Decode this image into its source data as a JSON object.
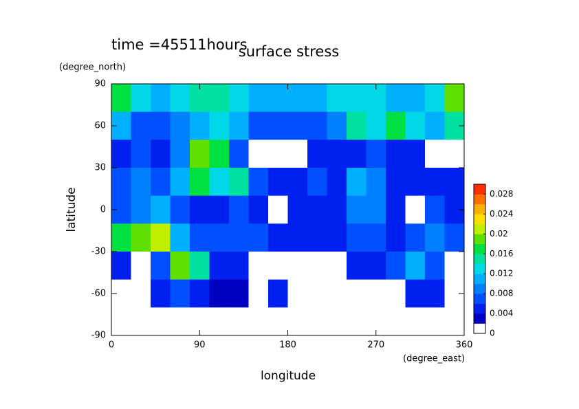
{
  "chart_data": {
    "type": "contour",
    "title": "surface stress",
    "subtitle": "time =45511hours",
    "xlabel": "longitude",
    "ylabel": "latitude",
    "xunit": "(degree_east)",
    "yunit": "(degree_north)",
    "xlim": [
      0,
      360
    ],
    "ylim": [
      -90,
      90
    ],
    "xticks": [
      0,
      90,
      180,
      270,
      360
    ],
    "yticks": [
      90,
      60,
      30,
      0,
      -30,
      -60,
      -90
    ],
    "xbins": [
      0,
      20,
      40,
      60,
      80,
      100,
      120,
      140,
      160,
      180,
      200,
      220,
      240,
      260,
      280,
      300,
      320,
      340,
      360
    ],
    "ybins": [
      90,
      70,
      50,
      30,
      10,
      -10,
      -30,
      -50,
      -70,
      -90
    ],
    "z": [
      [
        0.016,
        0.012,
        0.01,
        0.012,
        0.014,
        0.014,
        0.012,
        0.01,
        0.01,
        0.01,
        0.01,
        0.012,
        0.012,
        0.012,
        0.01,
        0.01,
        0.012,
        0.018
      ],
      [
        0.01,
        0.006,
        0.006,
        0.008,
        0.01,
        0.012,
        0.01,
        0.006,
        0.006,
        0.006,
        0.006,
        0.008,
        0.014,
        0.012,
        0.016,
        0.012,
        0.01,
        0.014
      ],
      [
        0.004,
        0.006,
        0.004,
        0.008,
        0.018,
        0.016,
        0.006,
        0,
        0,
        0,
        0.004,
        0.004,
        0.004,
        0.006,
        0.004,
        0.004,
        0,
        0
      ],
      [
        0.006,
        0.008,
        0.006,
        0.01,
        0.016,
        0.012,
        0.014,
        0.006,
        0.004,
        0.004,
        0.006,
        0.004,
        0.01,
        0.008,
        0.004,
        0.004,
        0.004,
        0.004
      ],
      [
        0.006,
        0.008,
        0.01,
        0.006,
        0.004,
        0.004,
        0.006,
        0.004,
        0,
        0.004,
        0.004,
        0.004,
        0.008,
        0.008,
        0.004,
        0,
        0.006,
        0.004
      ],
      [
        0.016,
        0.018,
        0.02,
        0.01,
        0.006,
        0.006,
        0.006,
        0.006,
        0.004,
        0.004,
        0.004,
        0.004,
        0.006,
        0.006,
        0.004,
        0.006,
        0.008,
        0.006
      ],
      [
        0.004,
        0,
        0.006,
        0.018,
        0.014,
        0.004,
        0.004,
        0,
        0,
        0,
        0,
        0,
        0.004,
        0.004,
        0.006,
        0.01,
        0.006,
        0
      ],
      [
        0,
        0,
        0.004,
        0.006,
        0.004,
        0.002,
        0.002,
        0,
        0.004,
        0,
        0,
        0,
        0,
        0,
        0,
        0.004,
        0.004,
        0
      ],
      [
        0,
        0,
        0,
        0,
        0,
        0,
        0,
        0,
        0,
        0,
        0,
        0,
        0,
        0,
        0,
        0,
        0,
        0
      ]
    ],
    "clim": [
      0,
      0.03
    ],
    "cstep": 0.002,
    "cticks": [
      0,
      0.004,
      0.008,
      0.012,
      0.016,
      0.02,
      0.024,
      0.028
    ],
    "colors": [
      "#ffffff",
      "#0000c0",
      "#0020f0",
      "#0050ff",
      "#0080ff",
      "#00b0ff",
      "#00d8e8",
      "#00e0a0",
      "#00e040",
      "#60e000",
      "#c0f000",
      "#ffe000",
      "#ffb000",
      "#ff7000",
      "#ff3000"
    ]
  }
}
